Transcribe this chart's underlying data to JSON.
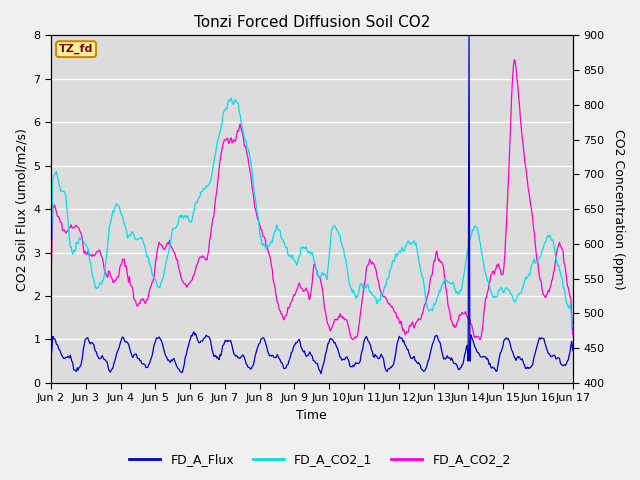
{
  "title": "Tonzi Forced Diffusion Soil CO2",
  "xlabel": "Time",
  "ylabel_left": "CO2 Soil Flux (umol/m2/s)",
  "ylabel_right": "CO2 Concentration (ppm)",
  "ylim_left": [
    0.0,
    8.0
  ],
  "ylim_right": [
    400,
    900
  ],
  "yticks_left": [
    0.0,
    1.0,
    2.0,
    3.0,
    4.0,
    5.0,
    6.0,
    7.0,
    8.0
  ],
  "yticks_right": [
    400,
    450,
    500,
    550,
    600,
    650,
    700,
    750,
    800,
    850,
    900
  ],
  "xtick_labels": [
    "Jun 2",
    "Jun 3",
    "Jun 4",
    "Jun 5",
    "Jun 6",
    "Jun 7",
    "Jun 8",
    "Jun 9",
    "Jun 10",
    "Jun 11",
    "Jun 12",
    "Jun 13",
    "Jun 14",
    "Jun 15",
    "Jun 16",
    "Jun 17"
  ],
  "legend_label": "TZ_fd",
  "legend_entries": [
    "FD_A_Flux",
    "FD_A_CO2_1",
    "FD_A_CO2_2"
  ],
  "color_flux": "#0000cc",
  "color_co2_1": "#00ddee",
  "color_co2_2": "#ff00cc",
  "bg_color": "#dcdcdc",
  "fig_bg": "#f0f0f0",
  "grid_color": "#ffffff",
  "title_fontsize": 11,
  "axis_label_fontsize": 9,
  "tick_fontsize": 8,
  "legend_fontsize": 9,
  "n_days": 15,
  "n_points": 600
}
